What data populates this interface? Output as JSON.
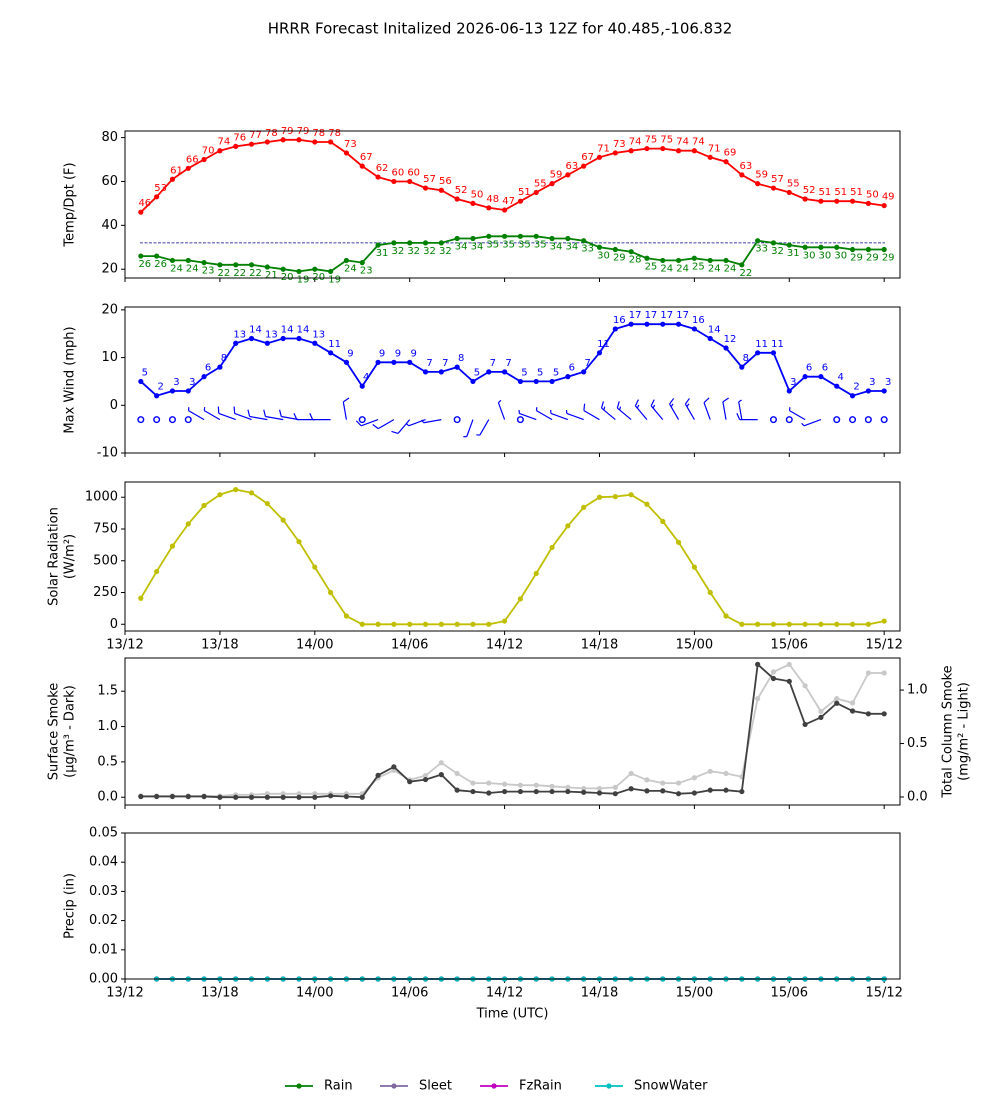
{
  "title": "HRRR Forecast Initalized 2026-06-13 12Z for 40.485,-106.832",
  "chart_data": [
    {
      "type": "line",
      "ylabel": [
        "Temp/Dpt (F)"
      ],
      "x": [
        1,
        2,
        3,
        4,
        5,
        6,
        7,
        8,
        9,
        10,
        11,
        12,
        13,
        14,
        15,
        16,
        17,
        18,
        19,
        20,
        21,
        22,
        23,
        24,
        25,
        26,
        27,
        28,
        29,
        30,
        31,
        32,
        33,
        34,
        35,
        36,
        37,
        38,
        39,
        40,
        41,
        42,
        43,
        44,
        45,
        46,
        47,
        48
      ],
      "xlim": [
        0,
        49
      ],
      "xticks": [
        0,
        6,
        12,
        18,
        24,
        30,
        36,
        42,
        48
      ],
      "ylim": [
        16,
        83
      ],
      "yticks": [
        20,
        40,
        60,
        80
      ],
      "hline": 32,
      "hline_color": "#00008b",
      "series": [
        {
          "color": "#ff0000",
          "label_position": "above",
          "values": [
            46,
            53,
            61,
            66,
            70,
            74,
            76,
            77,
            78,
            79,
            79,
            78,
            78,
            73,
            67,
            62,
            60,
            60,
            57,
            56,
            52,
            50,
            48,
            47,
            51,
            55,
            59,
            63,
            67,
            71,
            73,
            74,
            75,
            75,
            74,
            74,
            71,
            69,
            63,
            59,
            57,
            55,
            52,
            51,
            51,
            51,
            50,
            49
          ]
        },
        {
          "color": "#008000",
          "label_position": "below",
          "values": [
            26,
            26,
            24,
            24,
            23,
            22,
            22,
            22,
            21,
            20,
            19,
            20,
            19,
            24,
            23,
            31,
            32,
            32,
            32,
            32,
            34,
            34,
            35,
            35,
            35,
            35,
            34,
            34,
            33,
            30,
            29,
            28,
            25,
            24,
            24,
            25,
            24,
            24,
            22,
            33,
            32,
            31,
            30,
            30,
            30,
            29,
            29,
            29
          ]
        }
      ]
    },
    {
      "type": "line",
      "ylabel": [
        "Max Wind (mph)"
      ],
      "x": [
        1,
        2,
        3,
        4,
        5,
        6,
        7,
        8,
        9,
        10,
        11,
        12,
        13,
        14,
        15,
        16,
        17,
        18,
        19,
        20,
        21,
        22,
        23,
        24,
        25,
        26,
        27,
        28,
        29,
        30,
        31,
        32,
        33,
        34,
        35,
        36,
        37,
        38,
        39,
        40,
        41,
        42,
        43,
        44,
        45,
        46,
        47,
        48
      ],
      "xlim": [
        0,
        49
      ],
      "xticks": [
        0,
        6,
        12,
        18,
        24,
        30,
        36,
        42,
        48
      ],
      "ylim": [
        -10,
        20.6
      ],
      "yticks": [
        -10,
        0,
        10,
        20
      ],
      "barb_level": -3,
      "barb_direction": [
        null,
        null,
        null,
        null,
        300,
        300,
        290,
        290,
        280,
        280,
        280,
        270,
        270,
        350,
        null,
        250,
        240,
        220,
        250,
        260,
        null,
        200,
        210,
        340,
        null,
        290,
        300,
        290,
        290,
        300,
        310,
        310,
        320,
        320,
        330,
        330,
        340,
        350,
        350,
        270,
        null,
        null,
        300,
        250,
        null,
        null,
        null,
        null
      ],
      "series": [
        {
          "color": "#0000ff",
          "label_position": "above",
          "values": [
            5,
            2,
            3,
            3,
            6,
            8,
            13,
            14,
            13,
            14,
            14,
            13,
            11,
            9,
            4,
            9,
            9,
            9,
            7,
            7,
            8,
            5,
            7,
            7,
            5,
            5,
            5,
            6,
            7,
            11,
            16,
            17,
            17,
            17,
            17,
            16,
            14,
            12,
            8,
            11,
            11,
            3,
            6,
            6,
            4,
            2,
            3,
            3
          ]
        }
      ]
    },
    {
      "type": "line",
      "ylabel": [
        "Solar Radiation",
        "(W/m²)"
      ],
      "x": [
        1,
        2,
        3,
        4,
        5,
        6,
        7,
        8,
        9,
        10,
        11,
        12,
        13,
        14,
        15,
        16,
        17,
        18,
        19,
        20,
        21,
        22,
        23,
        24,
        25,
        26,
        27,
        28,
        29,
        30,
        31,
        32,
        33,
        34,
        35,
        36,
        37,
        38,
        39,
        40,
        41,
        42,
        43,
        44,
        45,
        46,
        47,
        48
      ],
      "xlim": [
        0,
        49
      ],
      "xticks": [
        {
          "value": 0,
          "label": "13/12"
        },
        {
          "value": 6,
          "label": "13/18"
        },
        {
          "value": 12,
          "label": "14/00"
        },
        {
          "value": 18,
          "label": "14/06"
        },
        {
          "value": 24,
          "label": "14/12"
        },
        {
          "value": 30,
          "label": "14/18"
        },
        {
          "value": 36,
          "label": "15/00"
        },
        {
          "value": 42,
          "label": "15/06"
        },
        {
          "value": 48,
          "label": "15/12"
        }
      ],
      "ylim": [
        -53,
        1120
      ],
      "yticks": [
        0,
        250,
        500,
        750,
        1000
      ],
      "series": [
        {
          "color": "#bfbf00",
          "values": [
            205,
            415,
            615,
            790,
            935,
            1020,
            1060,
            1035,
            950,
            820,
            650,
            450,
            250,
            65,
            0,
            0,
            0,
            0,
            0,
            0,
            0,
            0,
            0,
            25,
            200,
            400,
            605,
            775,
            920,
            1000,
            1005,
            1020,
            945,
            810,
            645,
            450,
            250,
            65,
            0,
            0,
            0,
            0,
            0,
            0,
            0,
            0,
            0,
            25
          ]
        }
      ]
    },
    {
      "type": "line",
      "ylabel": [
        "Surface Smoke",
        "(μg/m³ - Dark)"
      ],
      "y2label": [
        "Total Column Smoke",
        "(mg/m² - Light)"
      ],
      "x": [
        1,
        2,
        3,
        4,
        5,
        6,
        7,
        8,
        9,
        10,
        11,
        12,
        13,
        14,
        15,
        16,
        17,
        18,
        19,
        20,
        21,
        22,
        23,
        24,
        25,
        26,
        27,
        28,
        29,
        30,
        31,
        32,
        33,
        34,
        35,
        36,
        37,
        38,
        39,
        40,
        41,
        42,
        43,
        44,
        45,
        46,
        47,
        48
      ],
      "xlim": [
        0,
        49
      ],
      "xticks": [
        0,
        6,
        12,
        18,
        24,
        30,
        36,
        42,
        48
      ],
      "ylim": [
        -0.11,
        1.97
      ],
      "yticks": [
        {
          "value": 0,
          "label": "0.0"
        },
        0.5,
        {
          "value": 1,
          "label": "1.0"
        },
        1.5
      ],
      "y2lim": [
        -0.075,
        1.3
      ],
      "y2ticks": [
        {
          "value": 0,
          "label": "0.0"
        },
        0.5,
        {
          "value": 1,
          "label": "1.0"
        }
      ],
      "series": [
        {
          "color": "#c8c8c8",
          "axis": "y2",
          "values": [
            0.01,
            0.01,
            0.01,
            0.01,
            0.01,
            0.01,
            0.02,
            0.02,
            0.03,
            0.03,
            0.03,
            0.03,
            0.03,
            0.03,
            0.03,
            0.18,
            0.25,
            0.16,
            0.2,
            0.32,
            0.22,
            0.13,
            0.13,
            0.12,
            0.11,
            0.11,
            0.1,
            0.09,
            0.08,
            0.08,
            0.09,
            0.22,
            0.16,
            0.13,
            0.13,
            0.18,
            0.24,
            0.22,
            0.19,
            0.92,
            1.17,
            1.24,
            1.04,
            0.8,
            0.92,
            0.88,
            1.16,
            1.16
          ]
        },
        {
          "color": "#404040",
          "values": [
            0.01,
            0.01,
            0.01,
            0.01,
            0.01,
            0,
            0,
            0,
            0,
            0,
            0,
            0,
            0.02,
            0.01,
            0,
            0.31,
            0.43,
            0.22,
            0.25,
            0.32,
            0.1,
            0.08,
            0.06,
            0.08,
            0.08,
            0.08,
            0.08,
            0.08,
            0.07,
            0.06,
            0.05,
            0.12,
            0.09,
            0.09,
            0.05,
            0.06,
            0.1,
            0.1,
            0.08,
            1.88,
            1.68,
            1.64,
            1.03,
            1.13,
            1.33,
            1.22,
            1.18,
            1.18
          ]
        }
      ]
    },
    {
      "type": "line",
      "ylabel": [
        "Precip (in)"
      ],
      "xlabel": "Time (UTC)",
      "legend": "bottom",
      "x": [
        2,
        3,
        4,
        5,
        6,
        7,
        8,
        9,
        10,
        11,
        12,
        13,
        14,
        15,
        16,
        17,
        18,
        19,
        20,
        21,
        22,
        23,
        24,
        25,
        26,
        27,
        28,
        29,
        30,
        31,
        32,
        33,
        34,
        35,
        36,
        37,
        38,
        39,
        40,
        41,
        42,
        43,
        44,
        45,
        46,
        47,
        48
      ],
      "xlim": [
        0,
        49
      ],
      "xticks": [
        {
          "value": 0,
          "label": "13/12"
        },
        {
          "value": 6,
          "label": "13/18"
        },
        {
          "value": 12,
          "label": "14/00"
        },
        {
          "value": 18,
          "label": "14/06"
        },
        {
          "value": 24,
          "label": "14/12"
        },
        {
          "value": 30,
          "label": "14/18"
        },
        {
          "value": 36,
          "label": "15/00"
        },
        {
          "value": 42,
          "label": "15/06"
        },
        {
          "value": 48,
          "label": "15/12"
        }
      ],
      "ylim": [
        0,
        0.05
      ],
      "yticks": [
        {
          "value": 0,
          "label": "0.00"
        },
        0.01,
        0.02,
        0.03,
        0.04,
        0.05
      ],
      "series": [
        {
          "name": "Rain",
          "color": "#008000",
          "values": [
            0,
            0,
            0,
            0,
            0,
            0,
            0,
            0,
            0,
            0,
            0,
            0,
            0,
            0,
            0,
            0,
            0,
            0,
            0,
            0,
            0,
            0,
            0,
            0,
            0,
            0,
            0,
            0,
            0,
            0,
            0,
            0,
            0,
            0,
            0,
            0,
            0,
            0,
            0,
            0,
            0,
            0,
            0,
            0,
            0,
            0,
            0
          ]
        },
        {
          "name": "Sleet",
          "color": "#8068a0",
          "values": [
            0,
            0,
            0,
            0,
            0,
            0,
            0,
            0,
            0,
            0,
            0,
            0,
            0,
            0,
            0,
            0,
            0,
            0,
            0,
            0,
            0,
            0,
            0,
            0,
            0,
            0,
            0,
            0,
            0,
            0,
            0,
            0,
            0,
            0,
            0,
            0,
            0,
            0,
            0,
            0,
            0,
            0,
            0,
            0,
            0,
            0,
            0
          ]
        },
        {
          "name": "FzRain",
          "color": "#c000c0",
          "values": [
            0,
            0,
            0,
            0,
            0,
            0,
            0,
            0,
            0,
            0,
            0,
            0,
            0,
            0,
            0,
            0,
            0,
            0,
            0,
            0,
            0,
            0,
            0,
            0,
            0,
            0,
            0,
            0,
            0,
            0,
            0,
            0,
            0,
            0,
            0,
            0,
            0,
            0,
            0,
            0,
            0,
            0,
            0,
            0,
            0,
            0,
            0
          ]
        },
        {
          "name": "SnowWater",
          "color": "#00bfbf",
          "values": [
            0,
            0,
            0,
            0,
            0,
            0,
            0,
            0,
            0,
            0,
            0,
            0,
            0,
            0,
            0,
            0,
            0,
            0,
            0,
            0,
            0,
            0,
            0,
            0,
            0,
            0,
            0,
            0,
            0,
            0,
            0,
            0,
            0,
            0,
            0,
            0,
            0,
            0,
            0,
            0,
            0,
            0,
            0,
            0,
            0,
            0,
            0
          ]
        }
      ]
    }
  ]
}
